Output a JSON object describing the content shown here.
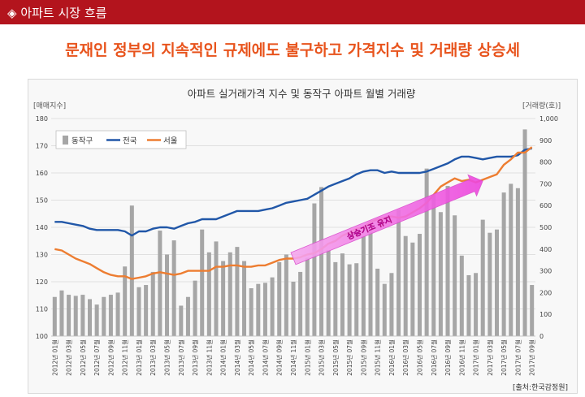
{
  "header": {
    "icon": "diamond-bullet-icon",
    "title": "아파트 시장 흐름"
  },
  "headline": "문재인 정부의 지속적인 규제에도 불구하고 가격지수 및 거래량 상승세",
  "chart_data": {
    "type": "bar+line",
    "title": "아파트 실거래가격 지수 및 동작구 아파트 월별 거래량",
    "ylabel_left": "[매매지수]",
    "ylabel_right": "[거래량(호)]",
    "ylim_left": [
      100,
      180
    ],
    "ylim_right": [
      0,
      1000
    ],
    "yticks_left": [
      "100",
      "110",
      "120",
      "130",
      "140",
      "150",
      "160",
      "170",
      "180"
    ],
    "yticks_right": [
      "0",
      "100",
      "200",
      "300",
      "400",
      "500",
      "600",
      "700",
      "800",
      "900",
      "1,000"
    ],
    "grid": true,
    "legend_position": "top-left",
    "categories": [
      "2012년 01월",
      "2012년 02월",
      "2012년 03월",
      "2012년 04월",
      "2012년 05월",
      "2012년 06월",
      "2012년 07월",
      "2012년 08월",
      "2012년 09월",
      "2012년 10월",
      "2012년 11월",
      "2012년 12월",
      "2013년 01월",
      "2013년 02월",
      "2013년 03월",
      "2013년 04월",
      "2013년 05월",
      "2013년 06월",
      "2013년 07월",
      "2013년 08월",
      "2013년 09월",
      "2013년 10월",
      "2013년 11월",
      "2013년 12월",
      "2014년 01월",
      "2014년 02월",
      "2014년 03월",
      "2014년 04월",
      "2014년 05월",
      "2014년 06월",
      "2014년 07월",
      "2014년 08월",
      "2014년 09월",
      "2014년 10월",
      "2014년 11월",
      "2014년 12월",
      "2015년 01월",
      "2015년 02월",
      "2015년 03월",
      "2015년 04월",
      "2015년 05월",
      "2015년 06월",
      "2015년 07월",
      "2015년 08월",
      "2015년 09월",
      "2015년 10월",
      "2015년 11월",
      "2015년 12월",
      "2016년 01월",
      "2016년 02월",
      "2016년 03월",
      "2016년 04월",
      "2016년 05월",
      "2016년 06월",
      "2016년 07월",
      "2016년 08월",
      "2016년 09월",
      "2016년 10월",
      "2016년 11월",
      "2016년 12월",
      "2017년 01월",
      "2017년 02월",
      "2017년 03월",
      "2017년 04월",
      "2017년 05월",
      "2017년 06월",
      "2017년 07월",
      "2017년 08월",
      "2017년 09월"
    ],
    "x_tick_labels": [
      "2012년 01월",
      "2012년 03월",
      "2012년 05월",
      "2012년 07월",
      "2012년 09월",
      "2012년 11월",
      "2013년 01월",
      "2013년 03월",
      "2013년 05월",
      "2013년 07월",
      "2013년 09월",
      "2013년 11월",
      "2014년 01월",
      "2014년 03월",
      "2014년 05월",
      "2014년 07월",
      "2014년 09월",
      "2014년 11월",
      "2015년 01월",
      "2015년 03월",
      "2015년 05월",
      "2015년 07월",
      "2015년 09월",
      "2015년 11월",
      "2016년 01월",
      "2016년 03월",
      "2016년 05월",
      "2016년 07월",
      "2016년 09월",
      "2016년 11월",
      "2017년 01월",
      "2017년 03월",
      "2017년 05월",
      "2017년 07월",
      "2017년 09월"
    ],
    "series": [
      {
        "name": "동작구",
        "type": "bar",
        "axis": "right",
        "color": "#a6a6a6",
        "values": [
          180,
          210,
          190,
          185,
          190,
          170,
          145,
          180,
          190,
          200,
          320,
          600,
          225,
          235,
          295,
          485,
          375,
          440,
          140,
          180,
          255,
          490,
          385,
          435,
          345,
          385,
          410,
          345,
          220,
          240,
          245,
          270,
          340,
          375,
          250,
          295,
          360,
          610,
          685,
          395,
          340,
          380,
          330,
          335,
          460,
          480,
          310,
          240,
          290,
          580,
          460,
          430,
          470,
          770,
          650,
          570,
          690,
          555,
          370,
          280,
          290,
          535,
          475,
          490,
          660,
          700,
          680,
          950,
          235
        ]
      },
      {
        "name": "전국",
        "type": "line",
        "axis": "left",
        "color": "#2157a8",
        "values": [
          142,
          142,
          141.5,
          141,
          140.5,
          139.5,
          139,
          139,
          139,
          139,
          138.5,
          137,
          138.5,
          138.5,
          139.5,
          140,
          140,
          139.5,
          140.5,
          141.5,
          142,
          143,
          143,
          143,
          144,
          145,
          146,
          146,
          146,
          146,
          146.5,
          147,
          148,
          149,
          149.5,
          150,
          150.5,
          152,
          153.5,
          155,
          156,
          157,
          158,
          159.5,
          160.5,
          161,
          161,
          160,
          160.5,
          160,
          160,
          160,
          160,
          160.5,
          161.5,
          162.5,
          163.5,
          165,
          166,
          166,
          165.5,
          165,
          165.5,
          166,
          166,
          166,
          166.5,
          168.5,
          169
        ]
      },
      {
        "name": "서울",
        "type": "line",
        "axis": "left",
        "color": "#ed7d31",
        "values": [
          132,
          131.5,
          130,
          128.5,
          127.5,
          126.5,
          125,
          123.5,
          122.5,
          122,
          122,
          121,
          121.5,
          122,
          123,
          123.5,
          123,
          122.5,
          123,
          124,
          124,
          124,
          124,
          125.5,
          125.5,
          126,
          126,
          125.5,
          125.5,
          126,
          126,
          127,
          128,
          128.5,
          128.5,
          129,
          130,
          130.5,
          132,
          134,
          135,
          137,
          138,
          139.5,
          140,
          142,
          143,
          143.5,
          144,
          143.5,
          144,
          145.5,
          147,
          149,
          152,
          155,
          156.5,
          158,
          157,
          157.5,
          156.5,
          157.5,
          158.5,
          159.5,
          163,
          165,
          167.5,
          167.5,
          169.5
        ]
      }
    ],
    "annotation": "상승기조 유지",
    "source": "[출처:한국감정원]"
  }
}
